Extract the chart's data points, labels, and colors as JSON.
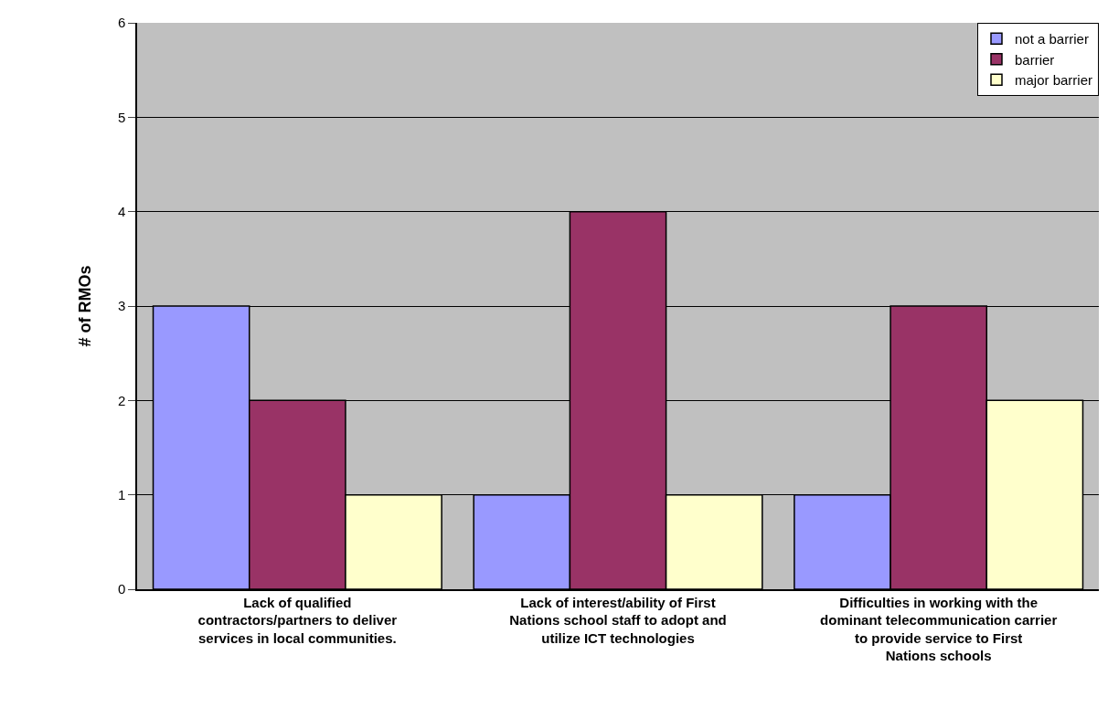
{
  "chart_data": {
    "type": "bar",
    "ylabel": "# of RMOs",
    "categories": [
      "Lack of qualified contractors/partners to deliver services in local communities.",
      "Lack of interest/ability of First Nations school staff to adopt and utilize ICT technologies",
      "Difficulties in working with the dominant telecommunication carrier to provide service to First Nations schools"
    ],
    "series": [
      {
        "name": "not a barrier",
        "color": "#9999ff",
        "values": [
          3,
          1,
          1
        ]
      },
      {
        "name": "barrier",
        "color": "#993366",
        "values": [
          2,
          4,
          3
        ]
      },
      {
        "name": "major barrier",
        "color": "#ffffcc",
        "values": [
          1,
          1,
          2
        ]
      }
    ],
    "ylim": [
      0,
      6
    ],
    "yticks": [
      0,
      1,
      2,
      3,
      4,
      5,
      6
    ],
    "grid": "y",
    "legend": "top right"
  }
}
